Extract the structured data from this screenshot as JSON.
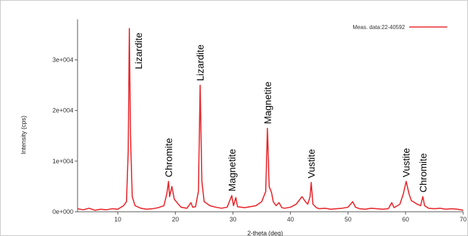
{
  "chart_data": {
    "type": "line",
    "title": "",
    "xlabel": "2-theta (deg)",
    "ylabel": "Intensity (cps)",
    "xlim": [
      3,
      70
    ],
    "ylim": [
      0,
      38000
    ],
    "x_ticks": [
      10,
      20,
      30,
      40,
      50,
      60,
      70
    ],
    "y_ticks": [
      {
        "value": 0,
        "label": "0e+000"
      },
      {
        "value": 10000,
        "label": "1e+004"
      },
      {
        "value": 20000,
        "label": "2e+004"
      },
      {
        "value": 30000,
        "label": "3e+004"
      }
    ],
    "grid": false,
    "legend_position": "top-right",
    "series": [
      {
        "name": "Meas. data:22-40592",
        "color": "#e8262b",
        "points": [
          [
            3,
            600
          ],
          [
            4,
            400
          ],
          [
            5,
            700
          ],
          [
            6,
            300
          ],
          [
            7,
            500
          ],
          [
            8,
            400
          ],
          [
            9,
            600
          ],
          [
            10,
            500
          ],
          [
            11,
            1200
          ],
          [
            11.5,
            2000
          ],
          [
            11.8,
            12000
          ],
          [
            12.0,
            36200
          ],
          [
            12.2,
            15000
          ],
          [
            12.5,
            3000
          ],
          [
            13,
            1200
          ],
          [
            14,
            700
          ],
          [
            15,
            500
          ],
          [
            16,
            600
          ],
          [
            17,
            800
          ],
          [
            18,
            1200
          ],
          [
            18.5,
            3500
          ],
          [
            18.8,
            6000
          ],
          [
            19.0,
            3000
          ],
          [
            19.4,
            5000
          ],
          [
            19.8,
            2500
          ],
          [
            20.5,
            1500
          ],
          [
            21,
            900
          ],
          [
            22,
            700
          ],
          [
            22.7,
            1800
          ],
          [
            23,
            900
          ],
          [
            23.5,
            1000
          ],
          [
            24.0,
            4000
          ],
          [
            24.3,
            25000
          ],
          [
            24.6,
            6000
          ],
          [
            25,
            2000
          ],
          [
            26,
            1200
          ],
          [
            27,
            900
          ],
          [
            28,
            700
          ],
          [
            29,
            900
          ],
          [
            29.8,
            3200
          ],
          [
            30.1,
            1200
          ],
          [
            30.5,
            2800
          ],
          [
            30.8,
            1000
          ],
          [
            31.5,
            900
          ],
          [
            32,
            800
          ],
          [
            33,
            1000
          ],
          [
            34,
            1200
          ],
          [
            35,
            2000
          ],
          [
            35.7,
            4000
          ],
          [
            36.0,
            16500
          ],
          [
            36.3,
            5000
          ],
          [
            36.7,
            3800
          ],
          [
            37,
            2000
          ],
          [
            37.5,
            1200
          ],
          [
            38,
            1800
          ],
          [
            38.5,
            800
          ],
          [
            39,
            700
          ],
          [
            40,
            900
          ],
          [
            41,
            1500
          ],
          [
            42,
            3000
          ],
          [
            42.6,
            2000
          ],
          [
            43,
            1500
          ],
          [
            43.4,
            3000
          ],
          [
            43.6,
            5800
          ],
          [
            43.9,
            1500
          ],
          [
            44.5,
            800
          ],
          [
            45,
            600
          ],
          [
            46,
            700
          ],
          [
            47,
            500
          ],
          [
            48,
            600
          ],
          [
            49,
            700
          ],
          [
            50,
            900
          ],
          [
            50.8,
            2000
          ],
          [
            51.3,
            900
          ],
          [
            52,
            600
          ],
          [
            53,
            500
          ],
          [
            54,
            700
          ],
          [
            55,
            600
          ],
          [
            56,
            500
          ],
          [
            57,
            600
          ],
          [
            57.6,
            1800
          ],
          [
            58,
            800
          ],
          [
            59,
            1500
          ],
          [
            59.6,
            3500
          ],
          [
            60.1,
            6000
          ],
          [
            60.6,
            3500
          ],
          [
            61,
            2200
          ],
          [
            61.6,
            1800
          ],
          [
            62,
            1500
          ],
          [
            62.6,
            1200
          ],
          [
            63.0,
            3000
          ],
          [
            63.3,
            1200
          ],
          [
            64,
            700
          ],
          [
            65,
            600
          ],
          [
            66,
            700
          ],
          [
            67,
            500
          ],
          [
            68,
            600
          ],
          [
            69,
            500
          ],
          [
            70,
            300
          ]
        ]
      }
    ],
    "annotations": [
      {
        "text": "Lizardite",
        "x": 12.0,
        "y": 36200
      },
      {
        "text": "Chromite",
        "x": 18.8,
        "y": 6000
      },
      {
        "text": "Lizardite",
        "x": 24.3,
        "y": 25000
      },
      {
        "text": "Magnetite",
        "x": 29.8,
        "y": 3200
      },
      {
        "text": "Magnetite",
        "x": 36.0,
        "y": 16500
      },
      {
        "text": "Vustite",
        "x": 43.6,
        "y": 5800
      },
      {
        "text": "Vustite",
        "x": 60.1,
        "y": 6000
      },
      {
        "text": "Chromite",
        "x": 63.0,
        "y": 3000
      }
    ]
  }
}
